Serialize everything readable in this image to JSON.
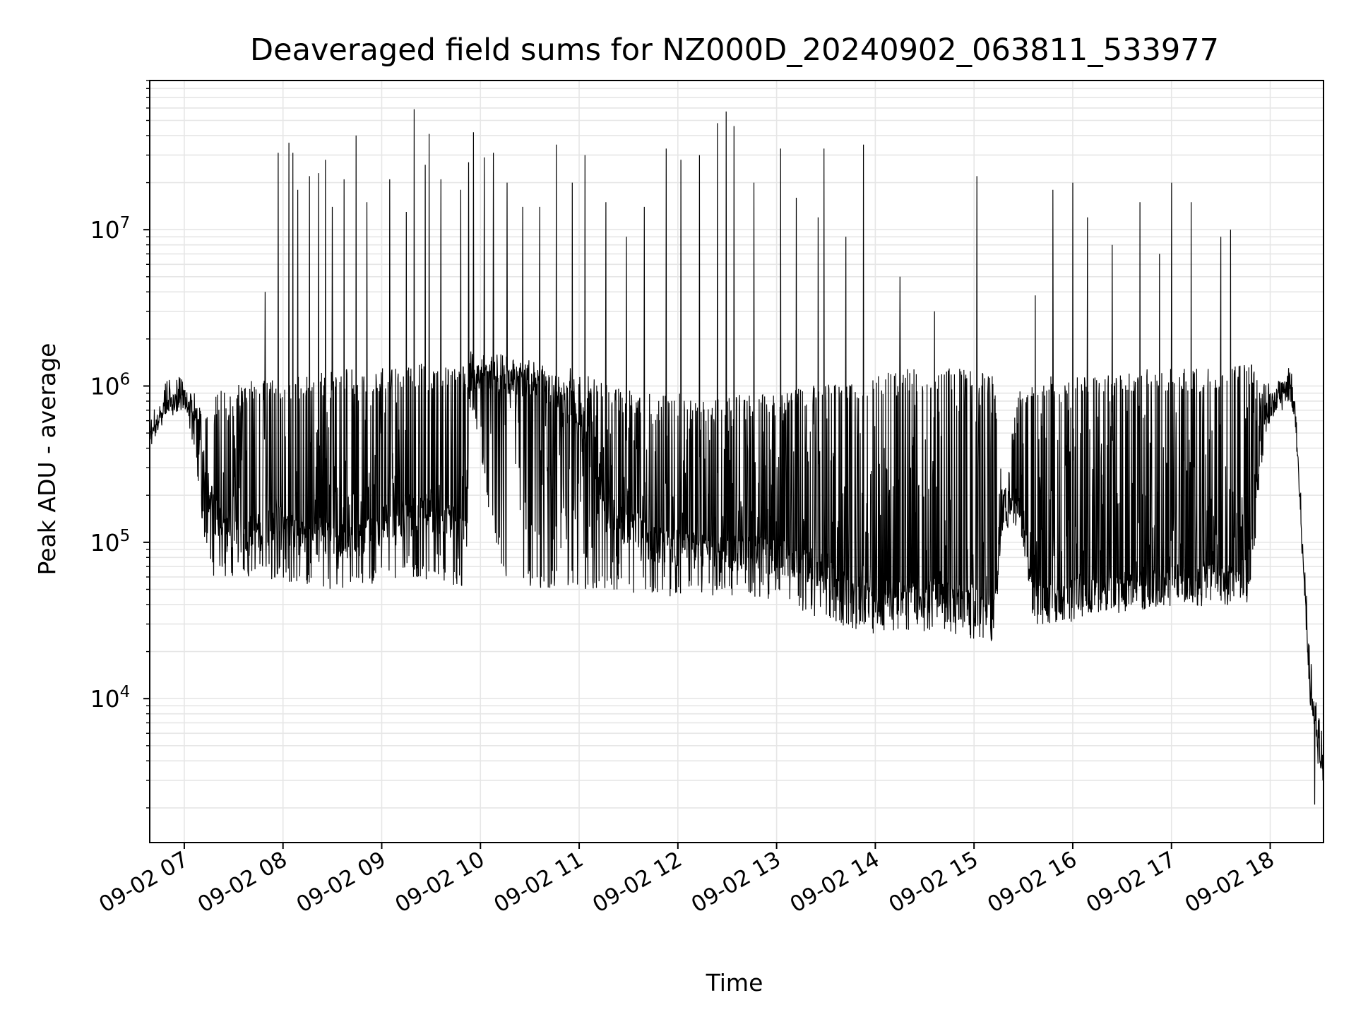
{
  "chart_data": {
    "type": "line",
    "title": "Deaveraged field sums for NZ000D_20240902_063811_533977",
    "xlabel": "Time",
    "ylabel": "Peak ADU - average",
    "y_scale": "log",
    "ylim": [
      1200,
      90000000
    ],
    "y_ticks": [
      {
        "value": 10000,
        "base": "10",
        "exp": "4"
      },
      {
        "value": 100000,
        "base": "10",
        "exp": "5"
      },
      {
        "value": 1000000,
        "base": "10",
        "exp": "6"
      },
      {
        "value": 10000000,
        "base": "10",
        "exp": "7"
      }
    ],
    "x_ticks": [
      {
        "hour": 7,
        "label": "09-02 07"
      },
      {
        "hour": 8,
        "label": "09-02 08"
      },
      {
        "hour": 9,
        "label": "09-02 09"
      },
      {
        "hour": 10,
        "label": "09-02 10"
      },
      {
        "hour": 11,
        "label": "09-02 11"
      },
      {
        "hour": 12,
        "label": "09-02 12"
      },
      {
        "hour": 13,
        "label": "09-02 13"
      },
      {
        "hour": 14,
        "label": "09-02 14"
      },
      {
        "hour": 15,
        "label": "09-02 15"
      },
      {
        "hour": 16,
        "label": "09-02 16"
      },
      {
        "hour": 17,
        "label": "09-02 17"
      },
      {
        "hour": 18,
        "label": "09-02 18"
      }
    ],
    "xlim_hours": [
      6.65,
      18.54
    ],
    "grid": true,
    "line_color": "#000000",
    "grid_color": "#e6e6e6",
    "series": [
      {
        "name": "",
        "x_hours": [
          6.65,
          6.8,
          7.0,
          7.1,
          7.2,
          7.3,
          7.5,
          7.7,
          8.0,
          8.3,
          8.7,
          9.0,
          9.3,
          9.6,
          9.85,
          9.9,
          10.2,
          10.6,
          11.0,
          11.3,
          11.7,
          12.0,
          12.3,
          12.7,
          13.0,
          13.3,
          13.7,
          14.0,
          14.3,
          14.6,
          14.9,
          15.2,
          15.3,
          15.45,
          15.6,
          15.9,
          16.3,
          16.7,
          17.0,
          17.4,
          17.8,
          17.95,
          18.1,
          18.2,
          18.25,
          18.32,
          18.4,
          18.47,
          18.54
        ],
        "y_baseline": [
          500000,
          800000,
          900000,
          700000,
          300000,
          150000,
          110000,
          120000,
          130000,
          110000,
          100000,
          130000,
          160000,
          150000,
          130000,
          1300000,
          1200000,
          1100000,
          700000,
          150000,
          100000,
          90000,
          85000,
          85000,
          80000,
          70000,
          50000,
          40000,
          45000,
          45000,
          40000,
          35000,
          160000,
          170000,
          45000,
          45000,
          50000,
          50000,
          55000,
          55000,
          60000,
          700000,
          900000,
          1000000,
          800000,
          120000,
          15000,
          7000,
          4000
        ],
        "y_upper": [
          500000,
          800000,
          1000000,
          800000,
          700000,
          900000,
          1000000,
          1100000,
          1100000,
          1200000,
          1300000,
          1300000,
          1400000,
          1400000,
          1400000,
          1400000,
          1400000,
          1300000,
          1300000,
          1000000,
          900000,
          900000,
          800000,
          900000,
          900000,
          1000000,
          1100000,
          1200000,
          1300000,
          1300000,
          1300000,
          1200000,
          200000,
          1000000,
          1100000,
          1200000,
          1200000,
          1300000,
          1300000,
          1300000,
          1400000,
          1100000,
          1100000,
          1100000,
          900000,
          120000,
          15000,
          7000,
          4000
        ],
        "y_lower": [
          450000,
          650000,
          700000,
          400000,
          100000,
          60000,
          60000,
          60000,
          55000,
          50000,
          48000,
          55000,
          60000,
          55000,
          50000,
          800000,
          60000,
          50000,
          50000,
          50000,
          45000,
          45000,
          45000,
          45000,
          42000,
          35000,
          28000,
          26000,
          27000,
          27000,
          25000,
          22000,
          140000,
          150000,
          30000,
          30000,
          35000,
          35000,
          38000,
          38000,
          40000,
          500000,
          700000,
          800000,
          600000,
          100000,
          10000,
          4000,
          2500
        ],
        "spikes": [
          {
            "hour": 7.82,
            "value": 4000000
          },
          {
            "hour": 7.95,
            "value": 31000000
          },
          {
            "hour": 8.06,
            "value": 36000000
          },
          {
            "hour": 8.1,
            "value": 31000000
          },
          {
            "hour": 8.15,
            "value": 18000000
          },
          {
            "hour": 8.27,
            "value": 22000000
          },
          {
            "hour": 8.36,
            "value": 23000000
          },
          {
            "hour": 8.43,
            "value": 28000000
          },
          {
            "hour": 8.5,
            "value": 14000000
          },
          {
            "hour": 8.62,
            "value": 21000000
          },
          {
            "hour": 8.74,
            "value": 40000000
          },
          {
            "hour": 8.85,
            "value": 15000000
          },
          {
            "hour": 9.08,
            "value": 21000000
          },
          {
            "hour": 9.25,
            "value": 13000000
          },
          {
            "hour": 9.33,
            "value": 59000000
          },
          {
            "hour": 9.44,
            "value": 26000000
          },
          {
            "hour": 9.48,
            "value": 41000000
          },
          {
            "hour": 9.6,
            "value": 21000000
          },
          {
            "hour": 9.8,
            "value": 18000000
          },
          {
            "hour": 9.88,
            "value": 27000000
          },
          {
            "hour": 9.93,
            "value": 42000000
          },
          {
            "hour": 10.04,
            "value": 29000000
          },
          {
            "hour": 10.13,
            "value": 31000000
          },
          {
            "hour": 10.27,
            "value": 20000000
          },
          {
            "hour": 10.43,
            "value": 14000000
          },
          {
            "hour": 10.6,
            "value": 14000000
          },
          {
            "hour": 10.77,
            "value": 35000000
          },
          {
            "hour": 10.93,
            "value": 20000000
          },
          {
            "hour": 11.06,
            "value": 30000000
          },
          {
            "hour": 11.27,
            "value": 15000000
          },
          {
            "hour": 11.48,
            "value": 9000000
          },
          {
            "hour": 11.66,
            "value": 14000000
          },
          {
            "hour": 11.88,
            "value": 33000000
          },
          {
            "hour": 12.03,
            "value": 28000000
          },
          {
            "hour": 12.22,
            "value": 30000000
          },
          {
            "hour": 12.4,
            "value": 48000000
          },
          {
            "hour": 12.49,
            "value": 57000000
          },
          {
            "hour": 12.57,
            "value": 46000000
          },
          {
            "hour": 12.77,
            "value": 20000000
          },
          {
            "hour": 13.04,
            "value": 33000000
          },
          {
            "hour": 13.2,
            "value": 16000000
          },
          {
            "hour": 13.42,
            "value": 12000000
          },
          {
            "hour": 13.48,
            "value": 33000000
          },
          {
            "hour": 13.7,
            "value": 9000000
          },
          {
            "hour": 13.88,
            "value": 35000000
          },
          {
            "hour": 14.25,
            "value": 5000000
          },
          {
            "hour": 14.6,
            "value": 3000000
          },
          {
            "hour": 15.03,
            "value": 22000000
          },
          {
            "hour": 15.62,
            "value": 3800000
          },
          {
            "hour": 15.8,
            "value": 18000000
          },
          {
            "hour": 16.0,
            "value": 20000000
          },
          {
            "hour": 16.15,
            "value": 12000000
          },
          {
            "hour": 16.4,
            "value": 8000000
          },
          {
            "hour": 16.68,
            "value": 15000000
          },
          {
            "hour": 16.88,
            "value": 7000000
          },
          {
            "hour": 17.0,
            "value": 20000000
          },
          {
            "hour": 17.2,
            "value": 15000000
          },
          {
            "hour": 17.5,
            "value": 9000000
          },
          {
            "hour": 17.6,
            "value": 10000000
          }
        ],
        "end_dip": {
          "hour": 18.45,
          "value": 2100
        }
      }
    ]
  }
}
